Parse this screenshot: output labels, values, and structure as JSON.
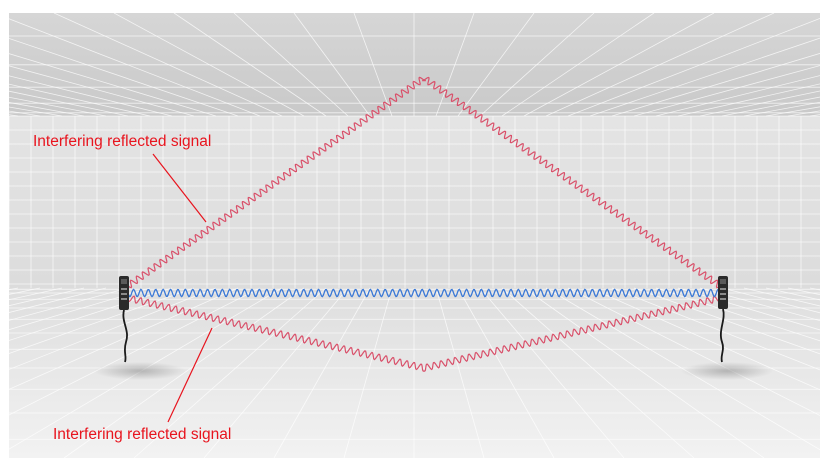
{
  "labels": {
    "top": "Interfering reflected signal",
    "bottom": "Interfering reflected signal"
  },
  "colors": {
    "reflected_signal": "#d9506a",
    "direct_signal": "#3a78d6",
    "label_text": "#e8141e",
    "leader_line": "#e8141e",
    "floor": "#ececec",
    "wall": "#e0e0e0",
    "ceiling": "#cfcfcf",
    "grid": "#ffffff",
    "sensor_body": "#2a2a2a"
  },
  "icons": {
    "left_sensor": "photoelectric-emitter-icon",
    "right_sensor": "photoelectric-receiver-icon"
  }
}
